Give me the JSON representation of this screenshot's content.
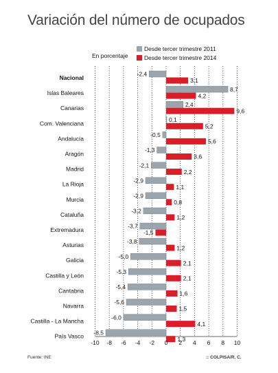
{
  "title": "Variación del número de ocupados",
  "source": "Fuente: INE",
  "credit": ":: COLPISA/R. C.",
  "chart_data": {
    "type": "bar",
    "orientation": "horizontal",
    "unit_label": "En porcentaje",
    "categories": [
      "Nacional",
      "Islas Baleares",
      "Canarias",
      "Com. Valenciana",
      "Andalucía",
      "Aragón",
      "Madrid",
      "La Rioja",
      "Murcia",
      "Cataluña",
      "Extremadura",
      "Asturias",
      "Galicia",
      "Castilla y León",
      "Cantabria",
      "Navarra",
      "Castilla - La Mancha",
      "País Vasco"
    ],
    "series": [
      {
        "name": "Desde tercer trimestre 2011",
        "color": "#9aa5ae",
        "values": [
          -2.4,
          8.7,
          2.4,
          0.1,
          -0.5,
          -1.3,
          -2.1,
          -2.9,
          -2.9,
          -3.2,
          -3.7,
          -3.8,
          -5.0,
          -5.3,
          -5.4,
          -5.6,
          -6.0,
          -8.5
        ],
        "labels": [
          "-2,4",
          "8,7",
          "2,4",
          "0,1",
          "-0,5",
          "-1,3",
          "-2,1",
          "-2,9",
          "-2,9",
          "-3,2",
          "-3,7",
          "-3,8",
          "-5,0",
          "-5,3",
          "-5,4",
          "-5,6",
          "-6,0",
          "-8,5"
        ]
      },
      {
        "name": "Desde tercer trimestre 2014",
        "color": "#d81e28",
        "values": [
          3.1,
          4.2,
          9.6,
          5.2,
          5.6,
          3.6,
          2.2,
          1.1,
          0.8,
          1.2,
          -1.5,
          1.2,
          2.1,
          2.1,
          1.6,
          1.5,
          4.1,
          1.3
        ],
        "labels": [
          "3,1",
          "4,2",
          "9,6",
          "5,2",
          "5,6",
          "3,6",
          "2,2",
          "1,1",
          "0,8",
          "1,2",
          "-1,5",
          "1,2",
          "2,1",
          "2,1",
          "1,6",
          "1,5",
          "4,1",
          "1,3"
        ]
      }
    ],
    "xlim": [
      -10,
      10
    ],
    "xticks": [
      -10,
      -8,
      -6,
      -4,
      -2,
      0,
      2,
      4,
      6,
      8,
      10
    ],
    "xtick_labels": [
      "-10",
      "-8",
      "-6",
      "-4",
      "-2",
      "0",
      "2",
      "4",
      "6",
      "8",
      "10"
    ],
    "grid": "vertical dotted",
    "legend": "top"
  }
}
